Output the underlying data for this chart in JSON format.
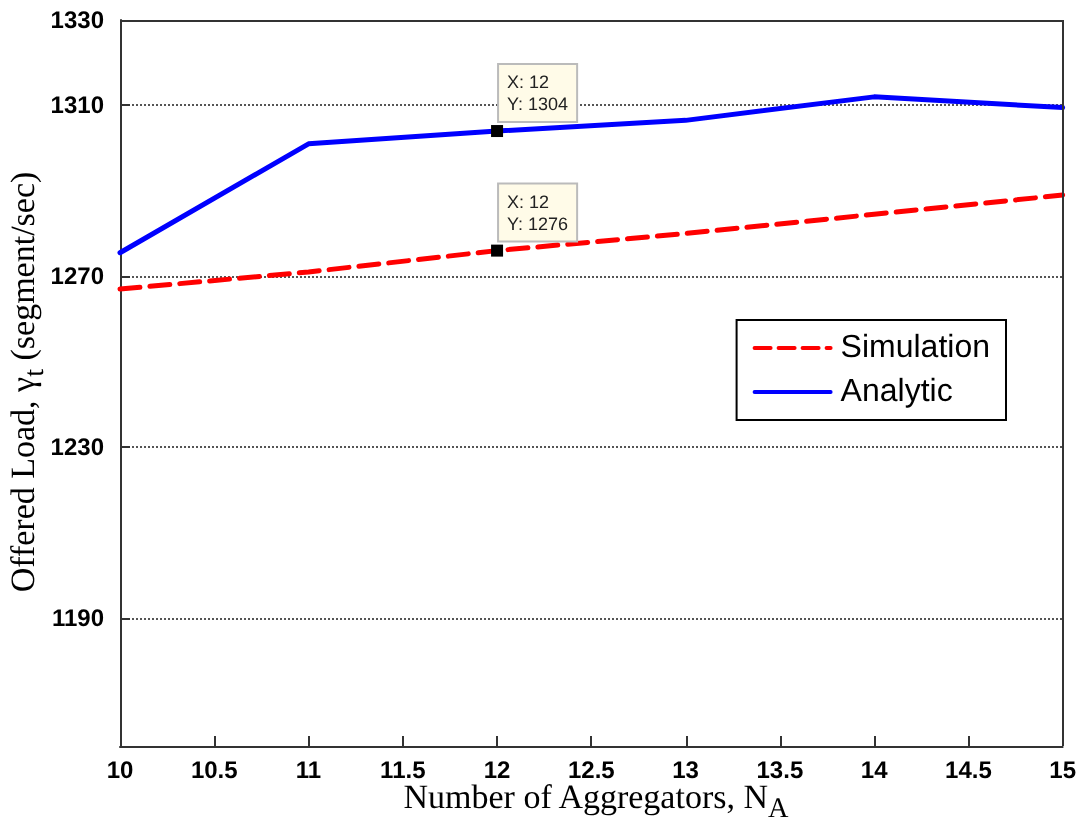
{
  "chart_data": {
    "type": "line",
    "xlabel": "Number of Aggregators, N$_{A}$",
    "ylabel": "Offered Load, γ$_{t}$ (segment/sec)",
    "x": [
      10,
      11,
      12,
      13,
      14,
      15
    ],
    "series": [
      {
        "name": "Simulation",
        "color": "#ff0000",
        "line_style": "dashed",
        "values": [
          1267,
          1271,
          1276,
          1280,
          1284.5,
          1289
        ]
      },
      {
        "name": "Analytic",
        "color": "#0000ff",
        "line_style": "solid",
        "values": [
          1275.5,
          1301,
          1304,
          1306.5,
          1312,
          1309.5
        ]
      }
    ],
    "xlim": [
      10,
      15
    ],
    "xticks": [
      10,
      10.5,
      11,
      11.5,
      12,
      12.5,
      13,
      13.5,
      14,
      14.5,
      15
    ],
    "ylim": [
      1160,
      1330
    ],
    "yticks": [
      1190,
      1230,
      1270,
      1310,
      1330
    ],
    "annotations": [
      {
        "text": "X: 12\nY: 1304",
        "x": 12,
        "y": 1304
      },
      {
        "text": "X: 12\nY: 1276",
        "x": 12,
        "y": 1276
      }
    ],
    "grid": "y",
    "legend": "right",
    "marker": "none"
  }
}
